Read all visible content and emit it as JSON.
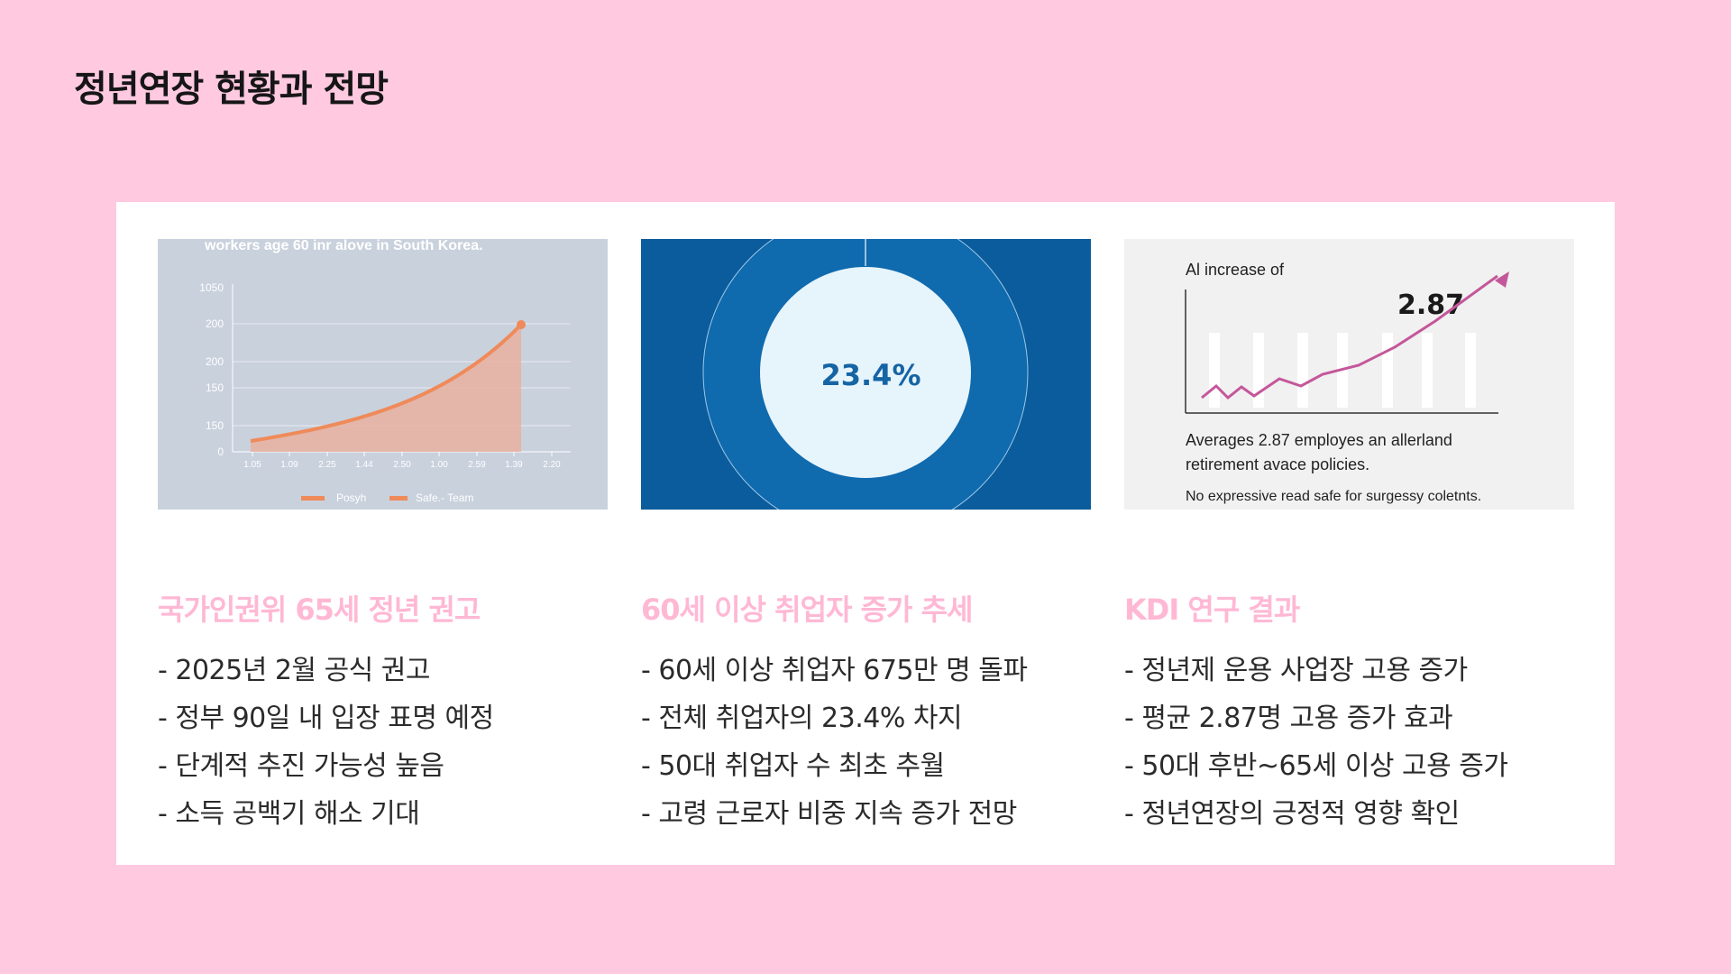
{
  "slide": {
    "title": "정년연장 현황과 전망"
  },
  "columns": [
    {
      "heading": "국가인권위 65세 정년 권고",
      "bullets": [
        "- 2025년 2월 공식 권고",
        "- 정부 90일 내 입장 표명 예정",
        "- 단계적 추진 가능성 높음",
        "- 소득 공백기 해소 기대"
      ],
      "image": {
        "caption_top": "workers age 60 inr alove in South Korea.",
        "y_ticks": [
          "1050",
          "200",
          "200",
          "150",
          "150",
          "0"
        ],
        "x_ticks": [
          "1.05",
          "1.09",
          "2.25",
          "1.44",
          "2.50",
          "1.00",
          "2.59",
          "1.39",
          "2.20"
        ],
        "legend": [
          "Posyh",
          "Safe.- Team"
        ],
        "colors": {
          "bg": "#c9d1dd",
          "line": "#ef8a5a",
          "area": "#e9b1a0"
        }
      }
    },
    {
      "heading": "60세 이상 취업자 증가 추세",
      "bullets": [
        "- 60세 이상 취업자 675만 명 돌파",
        "- 전체 취업자의 23.4% 차지",
        "- 50대 취업자 수 최초 추월",
        "- 고령 근로자 비중 지속 증가 전망"
      ],
      "image": {
        "center_value": "23.4%",
        "colors": {
          "bg": "#0a5c9c",
          "ring": "#0f6aae",
          "center": "#e6f4fc",
          "text": "#1564a4"
        }
      }
    },
    {
      "heading": "KDI 연구 결과",
      "bullets": [
        "- 정년제 운용 사업장 고용 증가",
        "- 평균 2.87명 고용 증가 효과",
        "- 50대 후반~65세 이상 고용 증가",
        "- 정년연장의 긍정적 영향 확인"
      ],
      "image": {
        "label_top": "Al increase of",
        "value": "2.87",
        "desc_line1": "Averages 2.87 employes an allerland",
        "desc_line2": "retirement avace policies.",
        "footnote": "No expressive read safe for surgessy coletnts.",
        "colors": {
          "bg": "#f1f1f1",
          "line": "#c4579a"
        }
      }
    }
  ]
}
